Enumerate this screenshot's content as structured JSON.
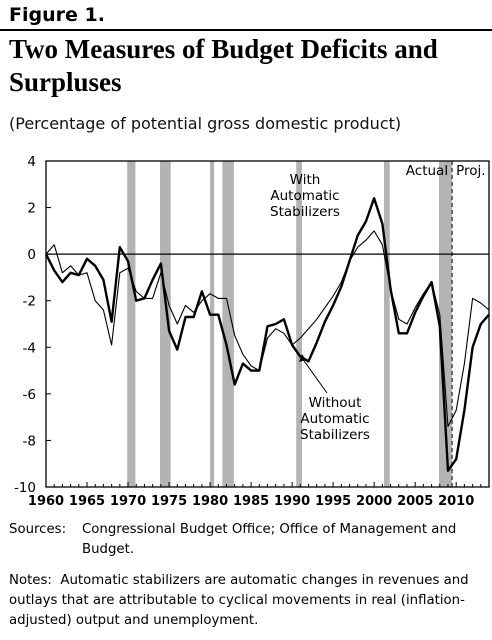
{
  "figure_label": "Figure 1.",
  "title": "Two Measures of Budget Deficits and Surpluses",
  "subtitle": "(Percentage of potential gross domestic product)",
  "sources_label": "Sources:",
  "sources_text": "Congressional Budget Office; Office of Management and Budget.",
  "notes_label": "Notes:",
  "notes_text": "Automatic stabilizers are automatic changes in revenues and outlays that are attributable to cyclical movements in real (inflation-adjusted) output and unemployment.",
  "chart_data": {
    "type": "line",
    "title": "Two Measures of Budget Deficits and Surpluses",
    "ylabel": "",
    "xlabel": "",
    "xlim": [
      1960,
      2014
    ],
    "ylim": [
      -10,
      4
    ],
    "yticks": [
      4,
      2,
      0,
      -2,
      -4,
      -6,
      -8,
      -10
    ],
    "xticks": [
      1960,
      1965,
      1970,
      1975,
      1980,
      1985,
      1990,
      1995,
      2000,
      2005,
      2010
    ],
    "recessions": [
      [
        1969.9,
        1970.9
      ],
      [
        1973.9,
        1975.2
      ],
      [
        1980.0,
        1980.5
      ],
      [
        1981.5,
        1982.9
      ],
      [
        1990.5,
        1991.2
      ],
      [
        2001.2,
        2001.9
      ],
      [
        2007.9,
        2009.5
      ]
    ],
    "projection_start": 2009.5,
    "region_labels": [
      "Actual",
      "Proj."
    ],
    "series": [
      {
        "name": "With Automatic Stabilizers",
        "style": "thick",
        "x": [
          1960,
          1961,
          1962,
          1963,
          1964,
          1965,
          1966,
          1967,
          1968,
          1969,
          1970,
          1971,
          1972,
          1973,
          1974,
          1975,
          1976,
          1977,
          1978,
          1979,
          1980,
          1981,
          1982,
          1983,
          1984,
          1985,
          1986,
          1987,
          1988,
          1989,
          1990,
          1991,
          1992,
          1993,
          1994,
          1995,
          1996,
          1997,
          1998,
          1999,
          2000,
          2001,
          2002,
          2003,
          2004,
          2005,
          2006,
          2007,
          2008,
          2009,
          2010,
          2011,
          2012,
          2013,
          2014
        ],
        "y": [
          0.0,
          -0.7,
          -1.2,
          -0.8,
          -0.9,
          -0.2,
          -0.5,
          -1.1,
          -2.9,
          0.3,
          -0.3,
          -2.0,
          -1.9,
          -1.1,
          -0.4,
          -3.3,
          -4.1,
          -2.7,
          -2.7,
          -1.6,
          -2.6,
          -2.6,
          -3.9,
          -5.6,
          -4.7,
          -5.0,
          -5.0,
          -3.1,
          -3.0,
          -2.8,
          -3.9,
          -4.4,
          -4.6,
          -3.8,
          -2.9,
          -2.2,
          -1.4,
          -0.3,
          0.8,
          1.4,
          2.4,
          1.3,
          -1.5,
          -3.4,
          -3.4,
          -2.5,
          -1.8,
          -1.2,
          -3.1,
          -9.3,
          -8.8,
          -6.7,
          -4.0,
          -3.0,
          -2.6
        ]
      },
      {
        "name": "Without Automatic Stabilizers",
        "style": "thin",
        "x": [
          1960,
          1961,
          1962,
          1963,
          1964,
          1965,
          1966,
          1967,
          1968,
          1969,
          1970,
          1971,
          1972,
          1973,
          1974,
          1975,
          1976,
          1977,
          1978,
          1979,
          1980,
          1981,
          1982,
          1983,
          1984,
          1985,
          1986,
          1987,
          1988,
          1989,
          1990,
          1991,
          1992,
          1993,
          1994,
          1995,
          1996,
          1997,
          1998,
          1999,
          2000,
          2001,
          2002,
          2003,
          2004,
          2005,
          2006,
          2007,
          2008,
          2009,
          2010,
          2011,
          2012,
          2013,
          2014
        ],
        "y": [
          0.0,
          0.4,
          -0.8,
          -0.5,
          -0.9,
          -0.8,
          -2.0,
          -2.4,
          -3.9,
          -0.8,
          -0.6,
          -1.6,
          -1.9,
          -1.9,
          -0.8,
          -2.2,
          -3.0,
          -2.2,
          -2.5,
          -2.0,
          -1.7,
          -1.9,
          -1.9,
          -3.5,
          -4.3,
          -4.8,
          -5.0,
          -3.6,
          -3.2,
          -3.4,
          -3.9,
          -3.6,
          -3.2,
          -2.8,
          -2.3,
          -1.8,
          -1.2,
          -0.3,
          0.3,
          0.6,
          1.0,
          0.4,
          -1.5,
          -2.8,
          -3.0,
          -2.3,
          -1.7,
          -1.2,
          -2.6,
          -7.4,
          -6.7,
          -4.7,
          -1.9,
          -2.1,
          -2.4
        ]
      }
    ],
    "annotations": [
      {
        "text": "With Automatic Stabilizers",
        "lines": [
          "With",
          "Automatic",
          "Stabilizers"
        ]
      },
      {
        "text": "Without Automatic Stabilizers",
        "lines": [
          "Without",
          "Automatic",
          "Stabilizers"
        ]
      }
    ]
  }
}
